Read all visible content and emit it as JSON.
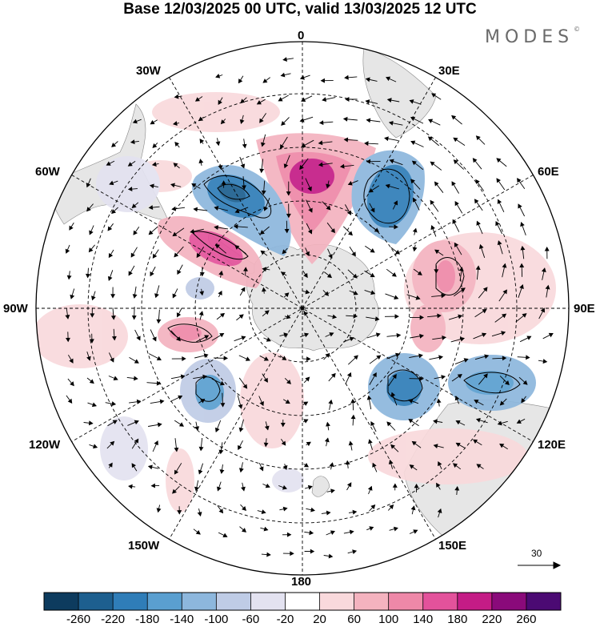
{
  "title": "Base 12/03/2025 00 UTC, valid 13/03/2025 12 UTC",
  "brand": "MODES",
  "brand_mark": "©",
  "longitude_labels": {
    "lon_0": "0",
    "lon_30e": "30E",
    "lon_60e": "60E",
    "lon_90e": "90E",
    "lon_120e": "120E",
    "lon_150e": "150E",
    "lon_180": "180",
    "lon_150w": "150W",
    "lon_120w": "120W",
    "lon_90w": "90W",
    "lon_60w": "60W",
    "lon_30w": "30W"
  },
  "reference_vector_label": "30",
  "colorbar": {
    "labels": [
      "-260",
      "-220",
      "-180",
      "-140",
      "-100",
      "-60",
      "-20",
      "20",
      "60",
      "100",
      "140",
      "180",
      "220",
      "260"
    ],
    "colors": [
      "#0d3b5e",
      "#1d5f8f",
      "#2f7db8",
      "#5a9fd0",
      "#8db7dd",
      "#bfcce6",
      "#e3e2f0",
      "#ffffff",
      "#f9d9dc",
      "#f4b3bf",
      "#ee88a8",
      "#e3529b",
      "#c41c86",
      "#8a0a7a",
      "#4b0a73"
    ]
  },
  "colors": {
    "land": "#e4e4e4",
    "frame": "#000000"
  }
}
